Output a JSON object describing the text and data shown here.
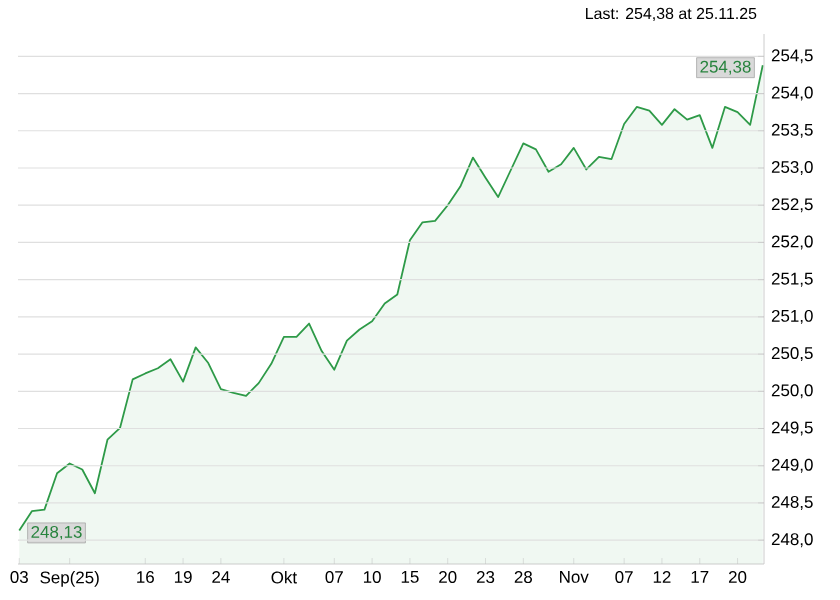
{
  "chart_data": {
    "type": "area",
    "annotations": [
      "Last: 254,38 at 25.11.25"
    ],
    "categories": [
      "03",
      null,
      null,
      null,
      "Sep(25)",
      null,
      null,
      null,
      null,
      null,
      "16",
      null,
      null,
      "19",
      null,
      null,
      "24",
      null,
      null,
      null,
      null,
      "Okt",
      null,
      null,
      null,
      "07",
      null,
      null,
      "10",
      null,
      null,
      "15",
      null,
      null,
      "20",
      null,
      null,
      "23",
      null,
      null,
      "28",
      null,
      null,
      null,
      "Nov",
      null,
      null,
      null,
      "07",
      null,
      null,
      "12",
      null,
      null,
      "17",
      null,
      null,
      "20",
      null,
      null
    ],
    "values": [
      248.13,
      248.39,
      248.41,
      248.9,
      249.03,
      248.95,
      248.63,
      249.35,
      249.51,
      250.16,
      250.24,
      250.31,
      250.43,
      250.13,
      250.59,
      250.38,
      250.03,
      249.98,
      249.94,
      250.11,
      250.37,
      250.73,
      250.73,
      250.91,
      250.54,
      250.29,
      250.68,
      250.83,
      250.94,
      251.18,
      251.3,
      252.03,
      252.27,
      252.29,
      252.5,
      252.75,
      253.14,
      252.87,
      252.61,
      252.97,
      253.33,
      253.25,
      252.95,
      253.05,
      253.27,
      252.98,
      253.15,
      253.12,
      253.59,
      253.82,
      253.77,
      253.58,
      253.79,
      253.65,
      253.71,
      253.27,
      253.82,
      253.75,
      253.58,
      254.38
    ],
    "value_labels": [
      "248,13",
      null,
      null,
      null,
      null,
      null,
      null,
      null,
      null,
      null,
      null,
      null,
      null,
      null,
      null,
      null,
      null,
      null,
      null,
      null,
      null,
      null,
      null,
      null,
      null,
      null,
      null,
      null,
      null,
      null,
      null,
      null,
      null,
      null,
      null,
      null,
      null,
      null,
      null,
      null,
      null,
      null,
      null,
      null,
      null,
      null,
      null,
      null,
      null,
      null,
      null,
      null,
      null,
      null,
      null,
      null,
      null,
      null,
      null,
      "254,38"
    ],
    "color": "#2e9a48",
    "ylim": [
      247.68,
      254.8
    ],
    "yticks": [
      {
        "value": 248,
        "label": "248,0"
      },
      {
        "value": 248.5,
        "label": "248,5"
      },
      {
        "value": 249,
        "label": "249,0"
      },
      {
        "value": 249.5,
        "label": "249,5"
      },
      {
        "value": 250,
        "label": "250,0"
      },
      {
        "value": 250.5,
        "label": "250,5"
      },
      {
        "value": 251,
        "label": "251,0"
      },
      {
        "value": 251.5,
        "label": "251,5"
      },
      {
        "value": 252,
        "label": "252,0"
      },
      {
        "value": 252.5,
        "label": "252,5"
      },
      {
        "value": 253,
        "label": "253,0"
      },
      {
        "value": 253.5,
        "label": "253,5"
      },
      {
        "value": 254,
        "label": "254,0"
      },
      {
        "value": 254.5,
        "label": "254,5"
      }
    ],
    "grid": "y"
  }
}
